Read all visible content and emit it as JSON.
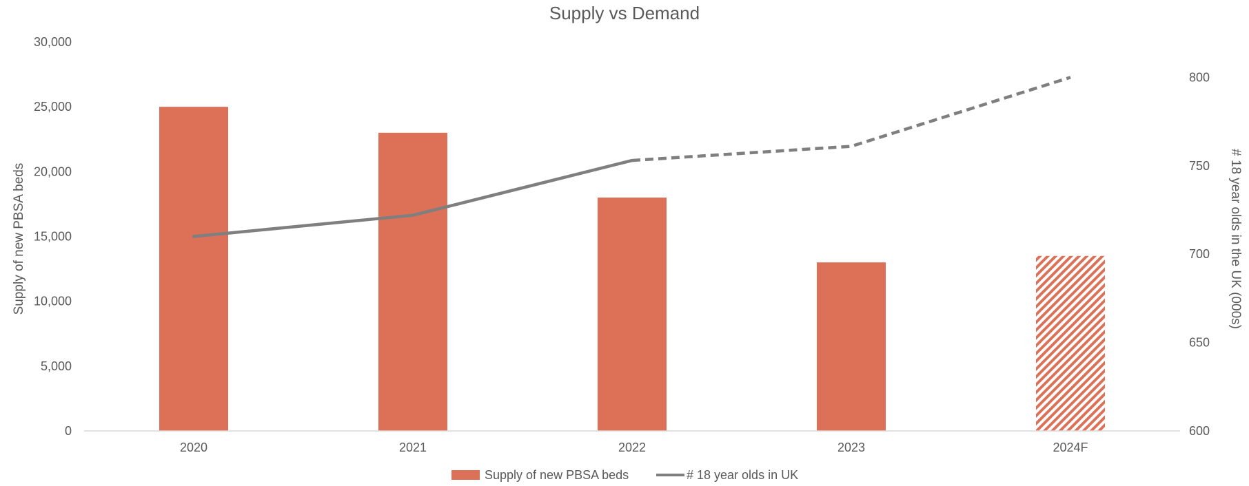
{
  "chart_data": {
    "type": "bar",
    "title": "Supply vs Demand",
    "categories": [
      "2020",
      "2021",
      "2022",
      "2023",
      "2024F"
    ],
    "ylabel": "Supply of new PBSA beds",
    "y2label": "# 18 year olds in the UK (000s)",
    "ylim": [
      0,
      30000
    ],
    "y2lim": [
      600,
      820
    ],
    "yticks": [
      "0",
      "5,000",
      "10,000",
      "15,000",
      "20,000",
      "25,000",
      "30,000"
    ],
    "ytick_values": [
      0,
      5000,
      10000,
      15000,
      20000,
      25000,
      30000
    ],
    "y2ticks": [
      "600",
      "650",
      "700",
      "750",
      "800"
    ],
    "y2tick_values": [
      600,
      650,
      700,
      750,
      800
    ],
    "grid": false,
    "legend_position": "bottom",
    "series": [
      {
        "name": "Supply of new PBSA beds",
        "kind": "bar",
        "axis": "left",
        "values": [
          25000,
          23000,
          18000,
          13000,
          13500
        ],
        "color": "#dc7158",
        "forecast_from_index": 4
      },
      {
        "name": "# 18 year olds in UK",
        "kind": "line",
        "axis": "right",
        "values": [
          710,
          722,
          753,
          761,
          800
        ],
        "color": "#7f7f7f",
        "dashed_from_index": 2
      }
    ]
  }
}
